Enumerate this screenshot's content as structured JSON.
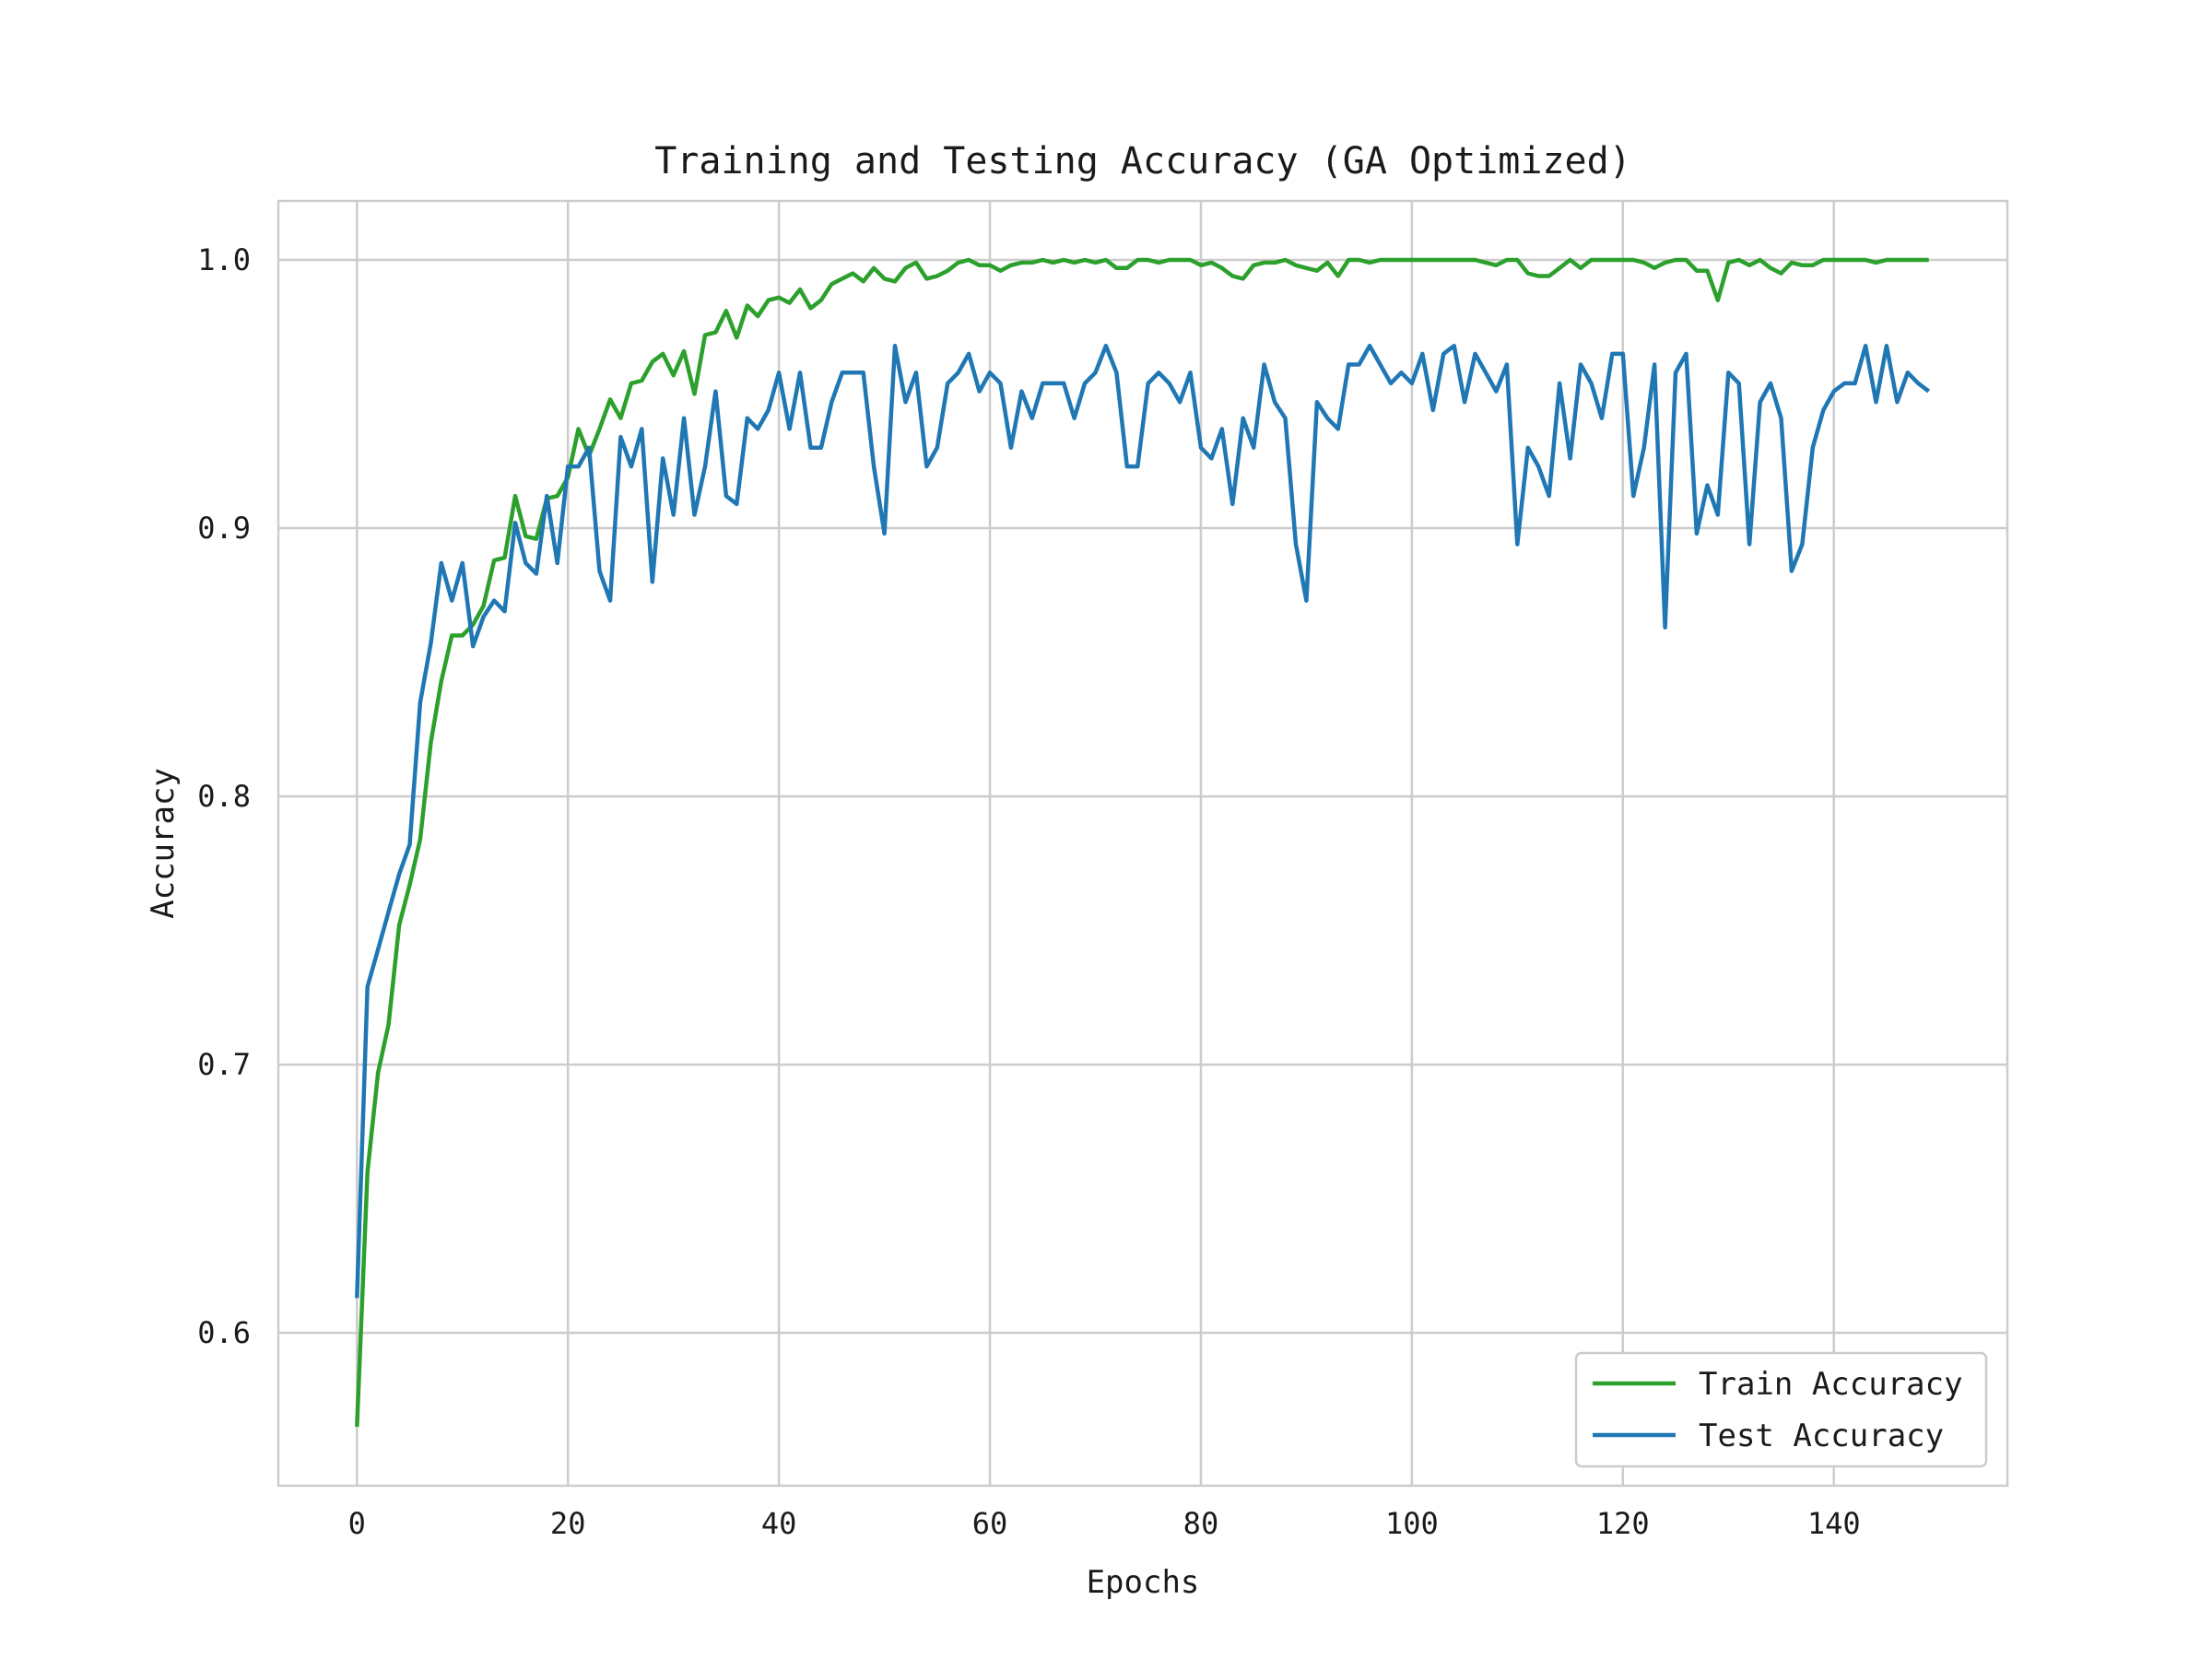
{
  "chart_data": {
    "type": "line",
    "title": "Training and Testing Accuracy (GA Optimized)",
    "xlabel": "Epochs",
    "ylabel": "Accuracy",
    "xlim": [
      -7.45,
      156.45
    ],
    "ylim": [
      0.543,
      1.022
    ],
    "xticks": [
      0,
      20,
      40,
      60,
      80,
      100,
      120,
      140
    ],
    "yticks": [
      0.6,
      0.7,
      0.8,
      0.9,
      1.0
    ],
    "xtick_labels": [
      "0",
      "20",
      "40",
      "60",
      "80",
      "100",
      "120",
      "140"
    ],
    "ytick_labels": [
      "0.6",
      "0.7",
      "0.8",
      "0.9",
      "1.0"
    ],
    "grid": true,
    "legend_position": "lower-right",
    "series": [
      {
        "name": "Train Accuracy",
        "color": "#2ca02c",
        "values": [
          0.565,
          0.66,
          0.697,
          0.715,
          0.752,
          0.767,
          0.784,
          0.82,
          0.843,
          0.86,
          0.86,
          0.864,
          0.871,
          0.888,
          0.889,
          0.912,
          0.897,
          0.896,
          0.911,
          0.912,
          0.919,
          0.937,
          0.927,
          0.937,
          0.948,
          0.941,
          0.954,
          0.955,
          0.962,
          0.965,
          0.957,
          0.966,
          0.95,
          0.972,
          0.973,
          0.981,
          0.971,
          0.983,
          0.979,
          0.985,
          0.986,
          0.984,
          0.989,
          0.982,
          0.985,
          0.991,
          0.993,
          0.995,
          0.992,
          0.997,
          0.993,
          0.992,
          0.997,
          0.999,
          0.993,
          0.994,
          0.996,
          0.999,
          1.0,
          0.998,
          0.998,
          0.996,
          0.998,
          0.999,
          0.999,
          1.0,
          0.999,
          1.0,
          0.999,
          1.0,
          0.999,
          1.0,
          0.997,
          0.997,
          1.0,
          1.0,
          0.999,
          1.0,
          1.0,
          1.0,
          0.998,
          0.999,
          0.997,
          0.994,
          0.993,
          0.998,
          0.999,
          0.999,
          1.0,
          0.998,
          0.997,
          0.996,
          0.999,
          0.994,
          1.0,
          1.0,
          0.999,
          1.0,
          1.0,
          1.0,
          1.0,
          1.0,
          1.0,
          1.0,
          1.0,
          1.0,
          1.0,
          0.999,
          0.998,
          1.0,
          1.0,
          0.995,
          0.994,
          0.994,
          0.997,
          1.0,
          0.997,
          1.0,
          1.0,
          1.0,
          1.0,
          1.0,
          0.999,
          0.997,
          0.999,
          1.0,
          1.0,
          0.996,
          0.996,
          0.985,
          0.999,
          1.0,
          0.998,
          1.0,
          0.997,
          0.995,
          0.999,
          0.998,
          0.998,
          1.0,
          1.0,
          1.0,
          1.0,
          1.0,
          0.999,
          1.0,
          1.0,
          1.0,
          1.0,
          1.0
        ]
      },
      {
        "name": "Test Accuracy",
        "color": "#1f77b4",
        "values": [
          0.613,
          0.729,
          0.743,
          0.757,
          0.771,
          0.782,
          0.835,
          0.857,
          0.887,
          0.873,
          0.887,
          0.856,
          0.867,
          0.873,
          0.869,
          0.902,
          0.887,
          0.883,
          0.912,
          0.887,
          0.923,
          0.923,
          0.93,
          0.884,
          0.873,
          0.934,
          0.923,
          0.937,
          0.88,
          0.926,
          0.905,
          0.941,
          0.905,
          0.923,
          0.951,
          0.912,
          0.909,
          0.941,
          0.937,
          0.944,
          0.958,
          0.937,
          0.958,
          0.93,
          0.93,
          0.947,
          0.958,
          0.958,
          0.958,
          0.923,
          0.898,
          0.968,
          0.947,
          0.958,
          0.923,
          0.93,
          0.954,
          0.958,
          0.965,
          0.951,
          0.958,
          0.954,
          0.93,
          0.951,
          0.941,
          0.954,
          0.954,
          0.954,
          0.941,
          0.954,
          0.958,
          0.968,
          0.958,
          0.923,
          0.923,
          0.954,
          0.958,
          0.954,
          0.947,
          0.958,
          0.93,
          0.926,
          0.937,
          0.909,
          0.941,
          0.93,
          0.961,
          0.947,
          0.941,
          0.894,
          0.873,
          0.947,
          0.941,
          0.937,
          0.961,
          0.961,
          0.968,
          0.961,
          0.954,
          0.958,
          0.954,
          0.965,
          0.944,
          0.965,
          0.968,
          0.947,
          0.965,
          0.958,
          0.951,
          0.961,
          0.894,
          0.93,
          0.923,
          0.912,
          0.954,
          0.926,
          0.961,
          0.954,
          0.941,
          0.965,
          0.965,
          0.912,
          0.93,
          0.961,
          0.863,
          0.958,
          0.965,
          0.898,
          0.916,
          0.905,
          0.958,
          0.954,
          0.894,
          0.947,
          0.954,
          0.941,
          0.884,
          0.894,
          0.93,
          0.944,
          0.951,
          0.954,
          0.954,
          0.968,
          0.947,
          0.968,
          0.947,
          0.958,
          0.954,
          0.951
        ]
      }
    ]
  }
}
